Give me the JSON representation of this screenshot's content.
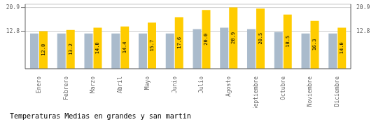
{
  "chart_data": {
    "type": "bar",
    "title": "Temperaturas Medias en grandes y san martin",
    "categories": [
      "Enero",
      "Febrero",
      "Marzo",
      "Abril",
      "Mayo",
      "Junio",
      "Julio",
      "Agosto",
      "Septiembre",
      "Octubre",
      "Noviembre",
      "Diciembre"
    ],
    "series": [
      {
        "color": "#AABBCC",
        "values": [
          12.0,
          12.0,
          12.0,
          12.0,
          12.0,
          12.0,
          13.5,
          14.0,
          13.5,
          12.5,
          12.0,
          12.0
        ]
      },
      {
        "color": "#FFCC00",
        "values": [
          12.8,
          13.2,
          14.0,
          14.4,
          15.7,
          17.6,
          20.0,
          20.9,
          20.5,
          18.5,
          16.3,
          14.0
        ],
        "value_labels": [
          "12.8",
          "13.2",
          "14.0",
          "14.4",
          "15.7",
          "17.6",
          "20.0",
          "20.9",
          "20.5",
          "18.5",
          "16.3",
          "14.0"
        ],
        "data_labels": true
      }
    ],
    "ylim": [
      0,
      22.0
    ],
    "yticks": [
      12.8,
      20.9
    ],
    "y2lim": [
      0,
      22.0
    ],
    "y2ticks": [
      12.8,
      20.9
    ],
    "grid": true
  }
}
